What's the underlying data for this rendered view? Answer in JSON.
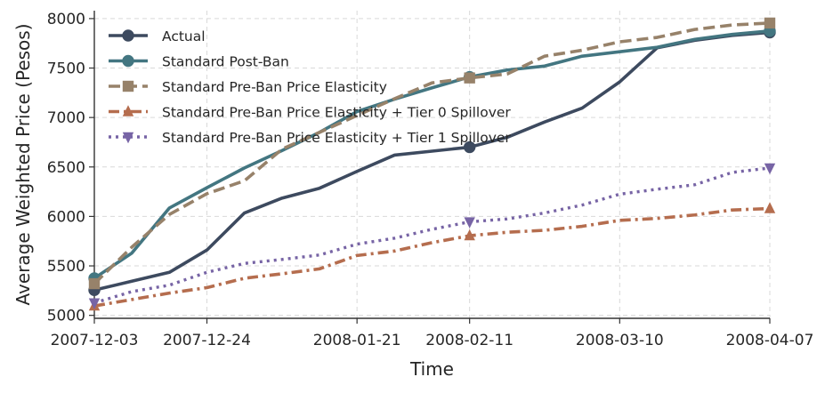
{
  "chart_data": {
    "type": "line",
    "title": "",
    "xlabel": "Time",
    "ylabel": "Average Weighted Price (Pesos)",
    "x_start": "2007-12-03",
    "x_end": "2008-04-07",
    "xlim": [
      0,
      126
    ],
    "ylim": [
      4970,
      8080
    ],
    "x_ticks": [
      {
        "label": "2007-12-03",
        "day": 0
      },
      {
        "label": "2007-12-24",
        "day": 21
      },
      {
        "label": "2008-01-21",
        "day": 49
      },
      {
        "label": "2008-02-11",
        "day": 70
      },
      {
        "label": "2008-03-10",
        "day": 98
      },
      {
        "label": "2008-04-07",
        "day": 126
      }
    ],
    "y_ticks": [
      5000,
      5500,
      6000,
      6500,
      7000,
      7500,
      8000
    ],
    "grid": true,
    "legend_position": "top-left",
    "x_days": [
      0,
      7,
      14,
      21,
      28,
      35,
      42,
      49,
      56,
      63,
      70,
      77,
      84,
      91,
      98,
      105,
      112,
      119,
      126
    ],
    "series": [
      {
        "name": "Actual",
        "color": "#3d4a5f",
        "linestyle": "solid",
        "marker": "circle",
        "marker_days": [
          0,
          70,
          126
        ],
        "values": [
          5255,
          5345,
          5435,
          5660,
          6035,
          6185,
          6285,
          6455,
          6620,
          6660,
          6700,
          6800,
          6955,
          7095,
          7360,
          7705,
          7780,
          7830,
          7860
        ]
      },
      {
        "name": "Standard Post-Ban",
        "color": "#437681",
        "linestyle": "solid",
        "marker": "circle",
        "marker_days": [
          0,
          70,
          126
        ],
        "values": [
          5375,
          5630,
          6085,
          6290,
          6490,
          6665,
          6850,
          7060,
          7185,
          7300,
          7410,
          7480,
          7520,
          7620,
          7665,
          7710,
          7790,
          7840,
          7875
        ]
      },
      {
        "name": "Standard Pre-Ban Price Elasticity",
        "color": "#97826a",
        "linestyle": "dashed",
        "marker": "square",
        "marker_days": [
          0,
          70,
          126
        ],
        "values": [
          5320,
          5690,
          6020,
          6230,
          6360,
          6680,
          6850,
          7020,
          7190,
          7350,
          7400,
          7440,
          7620,
          7680,
          7765,
          7810,
          7890,
          7935,
          7955
        ]
      },
      {
        "name": "Standard Pre-Ban Price Elasticity + Tier 0 Spillover",
        "color": "#b56d4e",
        "linestyle": "dashdot",
        "marker": "triangle-up",
        "marker_days": [
          0,
          70,
          126
        ],
        "values": [
          5095,
          5160,
          5225,
          5280,
          5375,
          5420,
          5470,
          5605,
          5650,
          5735,
          5805,
          5840,
          5860,
          5900,
          5960,
          5980,
          6015,
          6065,
          6080
        ]
      },
      {
        "name": "Standard Pre-Ban Price Elasticity + Tier 1 Spillover",
        "color": "#7764a5",
        "linestyle": "dotted",
        "marker": "triangle-down",
        "marker_days": [
          0,
          70,
          126
        ],
        "values": [
          5125,
          5240,
          5305,
          5435,
          5525,
          5565,
          5610,
          5720,
          5780,
          5870,
          5945,
          5975,
          6035,
          6115,
          6225,
          6275,
          6320,
          6445,
          6490
        ]
      }
    ]
  }
}
